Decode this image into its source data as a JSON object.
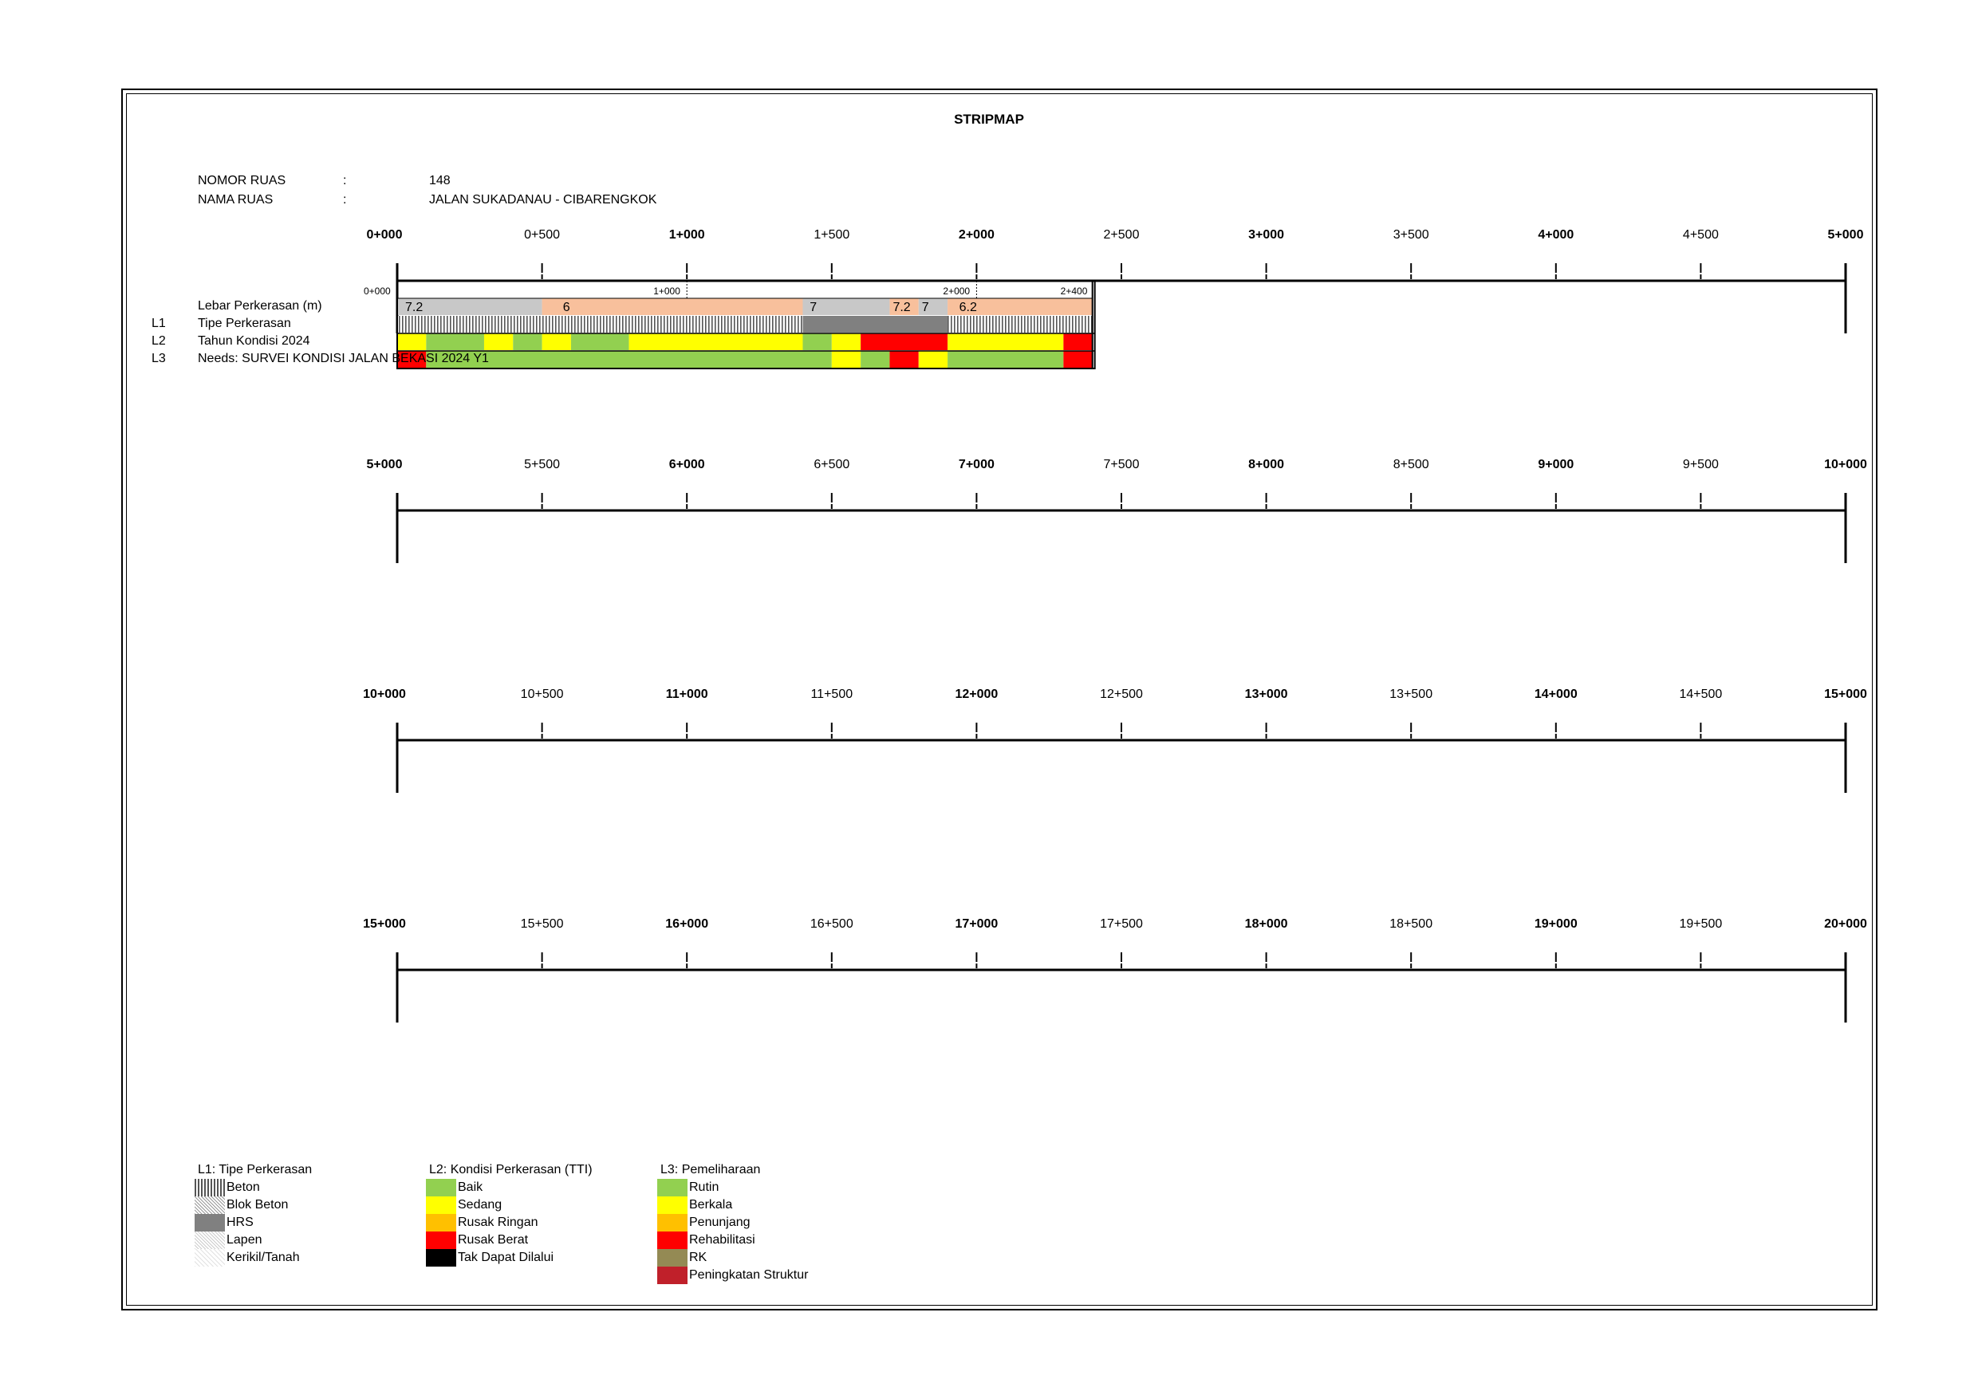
{
  "page": {
    "title": "STRIPMAP"
  },
  "header": {
    "nomor_label": "NOMOR RUAS",
    "nomor_colon": ":",
    "nomor_value": "148",
    "nama_label": "NAMA RUAS",
    "nama_colon": ":",
    "nama_value": "JALAN SUKADANAU - CIBARENGKOK"
  },
  "rows": [
    {
      "code": "",
      "label": "Lebar Perkerasan (m)"
    },
    {
      "code": "L1",
      "label": "Tipe Perkerasan"
    },
    {
      "code": "L2",
      "label": "Tahun Kondisi 2024"
    },
    {
      "code": "L3",
      "label": "Needs: SURVEI KONDISI JALAN BEKASI 2024 Y1"
    }
  ],
  "chart_data": {
    "type": "stripmap",
    "unit": "km",
    "road_length_km": 2.4,
    "scales": [
      {
        "start": 0,
        "end": 5,
        "labels": [
          "0+000",
          "0+500",
          "1+000",
          "1+500",
          "2+000",
          "2+500",
          "3+000",
          "3+500",
          "4+000",
          "4+500",
          "5+000"
        ]
      },
      {
        "start": 5,
        "end": 10,
        "labels": [
          "5+000",
          "5+500",
          "6+000",
          "6+500",
          "7+000",
          "7+500",
          "8+000",
          "8+500",
          "9+000",
          "9+500",
          "10+000"
        ]
      },
      {
        "start": 10,
        "end": 15,
        "labels": [
          "10+000",
          "10+500",
          "11+000",
          "11+500",
          "12+000",
          "12+500",
          "13+000",
          "13+500",
          "14+000",
          "14+500",
          "15+000"
        ]
      },
      {
        "start": 15,
        "end": 20,
        "labels": [
          "15+000",
          "15+500",
          "16+000",
          "16+500",
          "17+000",
          "17+500",
          "18+000",
          "18+500",
          "19+000",
          "19+500",
          "20+000"
        ]
      }
    ],
    "section_markers": [
      {
        "km": 0,
        "label": "0+000"
      },
      {
        "km": 1,
        "label": "1+000"
      },
      {
        "km": 2,
        "label": "2+000"
      },
      {
        "km": 2.4,
        "label": "2+400"
      }
    ],
    "width_segments": [
      {
        "from": 0,
        "to": 0.5,
        "value": "7.2",
        "color": "#c8c8c8"
      },
      {
        "from": 0.5,
        "to": 1.4,
        "value": "6",
        "color": "#f8c09c"
      },
      {
        "from": 1.4,
        "to": 1.7,
        "value": "7",
        "color": "#c8c8c8"
      },
      {
        "from": 1.7,
        "to": 1.8,
        "value": "7.2",
        "color": "#f8c09c"
      },
      {
        "from": 1.8,
        "to": 1.9,
        "value": "7",
        "color": "#c8c8c8"
      },
      {
        "from": 1.9,
        "to": 2.4,
        "value": "6.2",
        "color": "#f8c09c"
      }
    ],
    "pavement_type_segments": [
      {
        "from": 0,
        "to": 1.4,
        "type": "Beton"
      },
      {
        "from": 1.4,
        "to": 1.9,
        "type": "HRS"
      },
      {
        "from": 1.9,
        "to": 2.4,
        "type": "Beton"
      }
    ],
    "condition_segments": [
      {
        "from": 0,
        "to": 0.1,
        "condition": "Sedang"
      },
      {
        "from": 0.1,
        "to": 0.3,
        "condition": "Baik"
      },
      {
        "from": 0.3,
        "to": 0.4,
        "condition": "Sedang"
      },
      {
        "from": 0.4,
        "to": 0.5,
        "condition": "Baik"
      },
      {
        "from": 0.5,
        "to": 0.6,
        "condition": "Sedang"
      },
      {
        "from": 0.6,
        "to": 0.8,
        "condition": "Baik"
      },
      {
        "from": 0.8,
        "to": 1.4,
        "condition": "Sedang"
      },
      {
        "from": 1.4,
        "to": 1.5,
        "condition": "Baik"
      },
      {
        "from": 1.5,
        "to": 1.6,
        "condition": "Sedang"
      },
      {
        "from": 1.6,
        "to": 1.9,
        "condition": "Rusak Berat"
      },
      {
        "from": 1.9,
        "to": 2.3,
        "condition": "Sedang"
      },
      {
        "from": 2.3,
        "to": 2.4,
        "condition": "Rusak Berat"
      }
    ],
    "needs_segments": [
      {
        "from": 0,
        "to": 0.1,
        "need": "Rehabilitasi"
      },
      {
        "from": 0.1,
        "to": 1.5,
        "need": "Rutin"
      },
      {
        "from": 1.5,
        "to": 1.6,
        "need": "Berkala"
      },
      {
        "from": 1.6,
        "to": 1.7,
        "need": "Rutin"
      },
      {
        "from": 1.7,
        "to": 1.8,
        "need": "Rehabilitasi"
      },
      {
        "from": 1.8,
        "to": 1.9,
        "need": "Berkala"
      },
      {
        "from": 1.9,
        "to": 2.3,
        "need": "Rutin"
      },
      {
        "from": 2.3,
        "to": 2.4,
        "need": "Rehabilitasi"
      }
    ]
  },
  "legend": {
    "l1": {
      "title": "L1: Tipe Perkerasan",
      "items": [
        {
          "label": "Beton",
          "pattern": "beton"
        },
        {
          "label": "Blok Beton",
          "pattern": "blok"
        },
        {
          "label": "HRS",
          "pattern": "hrs"
        },
        {
          "label": "Lapen",
          "pattern": "lapen"
        },
        {
          "label": "Kerikil/Tanah",
          "pattern": "kerikil"
        }
      ]
    },
    "l2": {
      "title": "L2: Kondisi Perkerasan (TTI)",
      "items": [
        {
          "label": "Baik",
          "color": "#92d050"
        },
        {
          "label": "Sedang",
          "color": "#ffff00"
        },
        {
          "label": "Rusak Ringan",
          "color": "#ffc000"
        },
        {
          "label": "Rusak Berat",
          "color": "#ff0000"
        },
        {
          "label": "Tak Dapat Dilalui",
          "color": "#000000"
        }
      ]
    },
    "l3": {
      "title": "L3: Pemeliharaan",
      "items": [
        {
          "label": "Rutin",
          "color": "#92d050"
        },
        {
          "label": "Berkala",
          "color": "#ffff00"
        },
        {
          "label": "Penunjang",
          "color": "#ffc000"
        },
        {
          "label": "Rehabilitasi",
          "color": "#ff0000"
        },
        {
          "label": "RK",
          "color": "#948a54"
        },
        {
          "label": "Peningkatan Struktur",
          "color": "#c0202a"
        }
      ]
    }
  }
}
